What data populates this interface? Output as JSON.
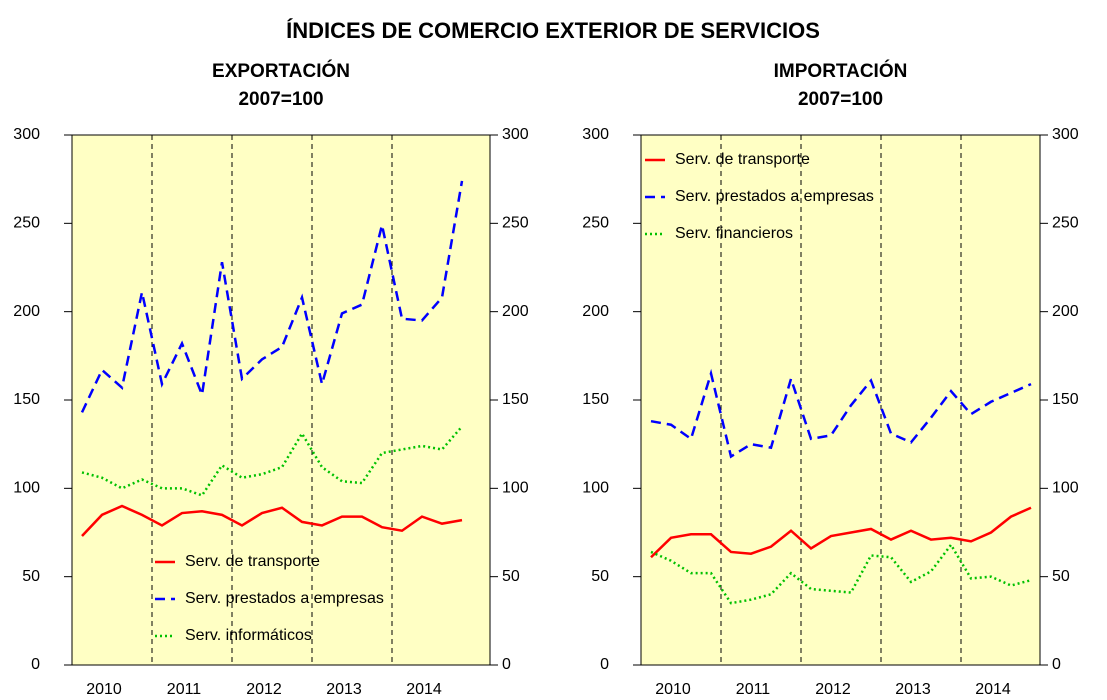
{
  "title": "ÍNDICES DE COMERCIO EXTERIOR DE SERVICIOS",
  "chart_data": [
    {
      "type": "line",
      "title": "EXPORTACIÓN",
      "subtitle": "2007=100",
      "categories": [
        "2010",
        "2011",
        "2012",
        "2013",
        "2014"
      ],
      "ylim": [
        0,
        300
      ],
      "yticks": [
        0,
        50,
        100,
        150,
        200,
        250,
        300
      ],
      "y2lim": [
        0,
        300
      ],
      "y2ticks": [
        0,
        50,
        100,
        150,
        200,
        250,
        300
      ],
      "background": "#ffffc4",
      "legend_position": "lower center",
      "series": [
        {
          "name": "Serv. de transporte",
          "color": "#ff0000",
          "dash": "solid",
          "values": [
            [
              73,
              85,
              90,
              85
            ],
            [
              79,
              86,
              87,
              85
            ],
            [
              79,
              86,
              89,
              81
            ],
            [
              79,
              84,
              84,
              78
            ],
            [
              76,
              84,
              80,
              82
            ]
          ]
        },
        {
          "name": "Serv. prestados a empresas",
          "color": "#0000ff",
          "dash": "dashed",
          "values": [
            [
              143,
              167,
              157,
              211
            ],
            [
              159,
              182,
              153,
              228
            ],
            [
              162,
              173,
              180,
              208
            ],
            [
              159,
              199,
              204,
              249
            ],
            [
              196,
              195,
              208,
              274
            ]
          ]
        },
        {
          "name": "Serv. informáticos",
          "color": "#00c000",
          "dash": "dotted",
          "values": [
            [
              109,
              106,
              100,
              105
            ],
            [
              100,
              100,
              96,
              113
            ],
            [
              106,
              108,
              112,
              131
            ],
            [
              112,
              104,
              103,
              120
            ],
            [
              122,
              124,
              122,
              135
            ]
          ]
        }
      ]
    },
    {
      "type": "line",
      "title": "IMPORTACIÓN",
      "subtitle": "2007=100",
      "categories": [
        "2010",
        "2011",
        "2012",
        "2013",
        "2014"
      ],
      "ylim": [
        0,
        300
      ],
      "yticks": [
        0,
        50,
        100,
        150,
        200,
        250,
        300
      ],
      "y2lim": [
        0,
        300
      ],
      "y2ticks": [
        0,
        50,
        100,
        150,
        200,
        250,
        300
      ],
      "background": "#ffffc4",
      "legend_position": "upper left",
      "series": [
        {
          "name": "Serv. de transporte",
          "color": "#ff0000",
          "dash": "solid",
          "values": [
            [
              61,
              72,
              74,
              74
            ],
            [
              64,
              63,
              67,
              76
            ],
            [
              66,
              73,
              75,
              77
            ],
            [
              71,
              76,
              71,
              72
            ],
            [
              70,
              75,
              84,
              89
            ]
          ]
        },
        {
          "name": "Serv. prestados a empresas",
          "color": "#0000ff",
          "dash": "dashed",
          "values": [
            [
              138,
              136,
              128,
              165
            ],
            [
              118,
              125,
              123,
              162
            ],
            [
              128,
              130,
              147,
              161
            ],
            [
              131,
              126,
              140,
              155
            ],
            [
              142,
              149,
              154,
              159
            ]
          ]
        },
        {
          "name": "Serv. financieros",
          "color": "#00c000",
          "dash": "dotted",
          "values": [
            [
              64,
              59,
              52,
              52
            ],
            [
              35,
              37,
              40,
              52
            ],
            [
              43,
              42,
              41,
              62
            ],
            [
              61,
              47,
              53,
              68
            ],
            [
              49,
              50,
              45,
              48
            ]
          ]
        }
      ]
    }
  ]
}
